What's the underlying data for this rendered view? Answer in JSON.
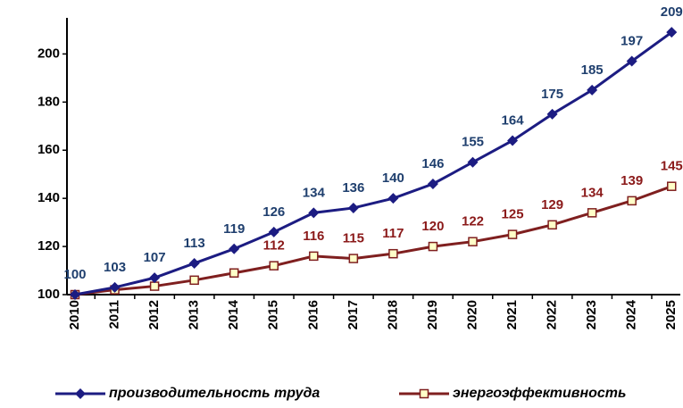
{
  "chart_data": {
    "type": "line",
    "categories": [
      "2010",
      "2011",
      "2012",
      "2013",
      "2014",
      "2015",
      "2016",
      "2017",
      "2018",
      "2019",
      "2020",
      "2021",
      "2022",
      "2023",
      "2024",
      "2025"
    ],
    "series": [
      {
        "name": "производительность труда",
        "color": "#1c1c82",
        "label_color": "#1f3f6e",
        "marker": "diamond",
        "values": [
          100,
          103,
          107,
          113,
          119,
          126,
          134,
          136,
          140,
          146,
          155,
          164,
          175,
          185,
          197,
          209
        ]
      },
      {
        "name": "энергоэффективность",
        "color": "#7f1f1f",
        "label_color": "#8b1a1a",
        "marker": "square",
        "values": [
          100,
          102,
          103.5,
          106,
          109,
          112,
          116,
          115,
          117,
          120,
          122,
          125,
          129,
          134,
          139,
          145
        ],
        "value_labels": [
          null,
          null,
          null,
          null,
          null,
          "112",
          "116",
          "115",
          "117",
          "120",
          "122",
          "125",
          "129",
          "134",
          "139",
          "145"
        ]
      }
    ],
    "ylim": [
      100,
      215
    ],
    "yticks": [
      100,
      120,
      140,
      160,
      180,
      200
    ],
    "grid": false
  }
}
